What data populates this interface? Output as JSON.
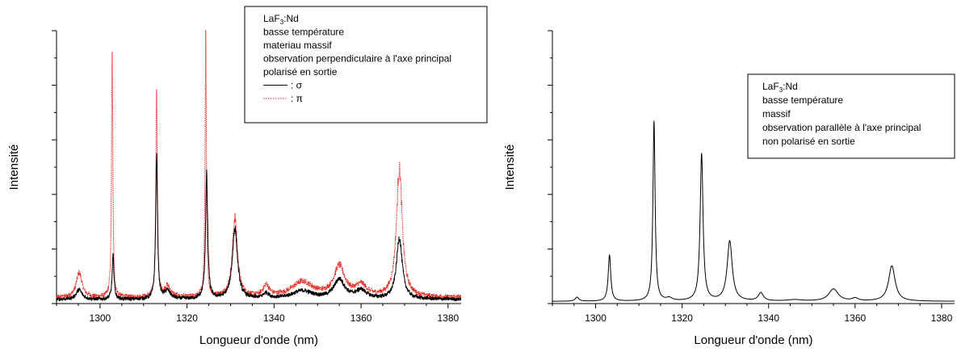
{
  "chart_data": [
    {
      "type": "line",
      "xlabel": "Longueur d'onde (nm)",
      "ylabel": "Intensité",
      "xlim": [
        1290,
        1383
      ],
      "ylim": [
        0,
        1
      ],
      "x_ticks": [
        1300,
        1320,
        1340,
        1360,
        1380
      ],
      "x_tick_labels": [
        "1300",
        "1320",
        "1340",
        "1360",
        "1380"
      ],
      "y_tick_labels_shown": false,
      "grid": false,
      "legend_position": "top-right",
      "legend": {
        "lines": [
          {
            "text": "LaF",
            "sub": "3",
            "suffix": ":Nd"
          },
          {
            "text": "basse température"
          },
          {
            "text": "materiau massif"
          },
          {
            "text": "observation perpendiculaire à l'axe principal"
          },
          {
            "text": "polarisé en sortie"
          }
        ],
        "entries": [
          {
            "label": ": σ",
            "color": "#000000",
            "style": "solid"
          },
          {
            "label": ": π",
            "color": "#e8231c",
            "style": "dotted"
          }
        ]
      },
      "series": [
        {
          "color": "#000000",
          "baseline": 0.015,
          "noise": 0.012,
          "peaks": [
            {
              "x": 1295.2,
              "h": 0.035,
              "w": 0.8
            },
            {
              "x": 1303.0,
              "h": 0.16,
              "w": 0.25
            },
            {
              "x": 1313.0,
              "h": 0.53,
              "w": 0.25
            },
            {
              "x": 1315.5,
              "h": 0.03,
              "w": 0.8
            },
            {
              "x": 1324.5,
              "h": 0.45,
              "w": 0.3
            },
            {
              "x": 1331.0,
              "h": 0.26,
              "w": 0.7
            },
            {
              "x": 1338.2,
              "h": 0.02,
              "w": 0.8
            },
            {
              "x": 1346.5,
              "h": 0.03,
              "w": 3.0
            },
            {
              "x": 1355.0,
              "h": 0.07,
              "w": 1.5
            },
            {
              "x": 1360.0,
              "h": 0.03,
              "w": 1.5
            },
            {
              "x": 1368.8,
              "h": 0.225,
              "w": 0.8
            }
          ]
        },
        {
          "color": "#e8231c",
          "baseline": 0.022,
          "noise": 0.014,
          "peaks": [
            {
              "x": 1295.2,
              "h": 0.09,
              "w": 0.8
            },
            {
              "x": 1302.8,
              "h": 0.88,
              "w": 0.18
            },
            {
              "x": 1313.0,
              "h": 0.78,
              "w": 0.2
            },
            {
              "x": 1315.5,
              "h": 0.04,
              "w": 0.8
            },
            {
              "x": 1324.3,
              "h": 0.93,
              "w": 0.18
            },
            {
              "x": 1331.0,
              "h": 0.29,
              "w": 0.7
            },
            {
              "x": 1338.2,
              "h": 0.04,
              "w": 0.8
            },
            {
              "x": 1346.5,
              "h": 0.055,
              "w": 3.0
            },
            {
              "x": 1355.0,
              "h": 0.11,
              "w": 1.5
            },
            {
              "x": 1360.0,
              "h": 0.04,
              "w": 1.5
            },
            {
              "x": 1368.8,
              "h": 0.47,
              "w": 0.8
            }
          ]
        }
      ]
    },
    {
      "type": "line",
      "xlabel": "Longueur d'onde (nm)",
      "ylabel": "Intensité",
      "xlim": [
        1290,
        1383
      ],
      "ylim": [
        0,
        1
      ],
      "x_ticks": [
        1300,
        1320,
        1340,
        1360,
        1380
      ],
      "x_tick_labels": [
        "1300",
        "1320",
        "1340",
        "1360",
        "1380"
      ],
      "y_tick_labels_shown": false,
      "grid": false,
      "legend_position": "top-right",
      "legend": {
        "lines": [
          {
            "text": "LaF",
            "sub": "3",
            "suffix": ":Nd"
          },
          {
            "text": "basse température"
          },
          {
            "text": "massif"
          },
          {
            "text": "observation parallèle à l'axe principal"
          },
          {
            "text": "non polarisé en sortie"
          }
        ],
        "entries": []
      },
      "series": [
        {
          "color": "#000000",
          "baseline": 0.008,
          "noise": 0.0,
          "peaks": [
            {
              "x": 1295.7,
              "h": 0.015,
              "w": 0.5
            },
            {
              "x": 1303.2,
              "h": 0.17,
              "w": 0.35
            },
            {
              "x": 1313.5,
              "h": 0.66,
              "w": 0.3
            },
            {
              "x": 1317.0,
              "h": 0.01,
              "w": 0.8
            },
            {
              "x": 1324.5,
              "h": 0.54,
              "w": 0.4
            },
            {
              "x": 1331.0,
              "h": 0.22,
              "w": 0.7
            },
            {
              "x": 1338.2,
              "h": 0.03,
              "w": 0.7
            },
            {
              "x": 1346.0,
              "h": 0.005,
              "w": 2.0
            },
            {
              "x": 1355.0,
              "h": 0.045,
              "w": 1.3
            },
            {
              "x": 1360.0,
              "h": 0.01,
              "w": 0.8
            },
            {
              "x": 1368.5,
              "h": 0.13,
              "w": 0.9
            }
          ]
        }
      ]
    }
  ]
}
